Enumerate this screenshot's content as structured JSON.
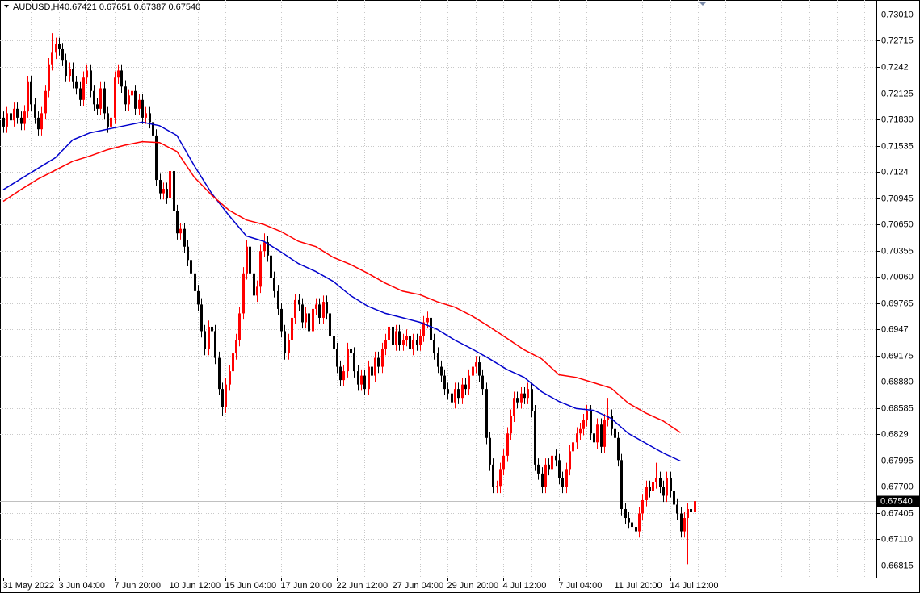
{
  "chart_data": {
    "type": "candlestick",
    "title": "AUDUSD,H4",
    "ohlc_text": "0.67421 0.67651 0.67387 0.67540",
    "ylim": [
      0.66679,
      0.73173
    ],
    "yticks": [
      {
        "value": 0.7301,
        "label": "0.73010"
      },
      0.72715,
      0.7242,
      0.72125,
      {
        "value": 0.7183,
        "label": "0.71830"
      },
      0.71535,
      0.7124,
      0.70945,
      {
        "value": 0.7065,
        "label": "0.70650"
      },
      0.70355,
      {
        "value": 0.7006,
        "label": "0.70060"
      },
      0.69765,
      0.6947,
      0.69175,
      {
        "value": 0.6888,
        "label": "0.68880"
      },
      0.68585,
      0.6829,
      0.67995,
      {
        "value": 0.677,
        "label": "0.67700"
      },
      0.67405,
      {
        "value": 0.6711,
        "label": "0.67110"
      },
      0.66815
    ],
    "x_labels": [
      "31 May 2022",
      "3 Jun 04:00",
      "7 Jun 20:00",
      "10 Jun 12:00",
      "15 Jun 04:00",
      "17 Jun 20:00",
      "22 Jun 12:00",
      "27 Jun 04:00",
      "29 Jun 20:00",
      "4 Jul 12:00",
      "7 Jul 04:00",
      "11 Jul 20:00",
      "14 Jul 12:00"
    ],
    "last_price": {
      "value": 0.6754,
      "label": "0.67540"
    },
    "grid": true,
    "bull_color": "#ff0000",
    "bear_color": "#000000",
    "candles": [
      [
        0.7185,
        0.7192,
        0.7168,
        0.7175
      ],
      [
        0.7175,
        0.7197,
        0.7168,
        0.719
      ],
      [
        0.719,
        0.7197,
        0.7175,
        0.7182
      ],
      [
        0.7182,
        0.7202,
        0.7175,
        0.7195
      ],
      [
        0.7195,
        0.7202,
        0.7178,
        0.7185
      ],
      [
        0.7185,
        0.7192,
        0.7171,
        0.7178
      ],
      [
        0.7178,
        0.7199,
        0.7171,
        0.7192
      ],
      [
        0.7192,
        0.7232,
        0.7185,
        0.7225
      ],
      [
        0.7225,
        0.7232,
        0.7193,
        0.72
      ],
      [
        0.72,
        0.7207,
        0.7178,
        0.7185
      ],
      [
        0.7185,
        0.7192,
        0.7165,
        0.7172
      ],
      [
        0.7172,
        0.7197,
        0.7165,
        0.719
      ],
      [
        0.719,
        0.7222,
        0.7183,
        0.7215
      ],
      [
        0.7215,
        0.7252,
        0.7208,
        0.7245
      ],
      [
        0.7245,
        0.728,
        0.7238,
        0.7258
      ],
      [
        0.7258,
        0.7275,
        0.7251,
        0.7268
      ],
      [
        0.7268,
        0.7275,
        0.7255,
        0.7262
      ],
      [
        0.7262,
        0.7269,
        0.7243,
        0.725
      ],
      [
        0.725,
        0.7257,
        0.7225,
        0.7232
      ],
      [
        0.7232,
        0.7247,
        0.7225,
        0.724
      ],
      [
        0.724,
        0.7247,
        0.7218,
        0.7225
      ],
      [
        0.7225,
        0.7232,
        0.7211,
        0.7218
      ],
      [
        0.7218,
        0.7225,
        0.7198,
        0.7205
      ],
      [
        0.7205,
        0.7237,
        0.7198,
        0.723
      ],
      [
        0.723,
        0.7245,
        0.7223,
        0.7238
      ],
      [
        0.7238,
        0.7245,
        0.7208,
        0.7215
      ],
      [
        0.7215,
        0.7222,
        0.7193,
        0.72
      ],
      [
        0.72,
        0.7207,
        0.7188,
        0.7195
      ],
      [
        0.7195,
        0.7225,
        0.7188,
        0.7218
      ],
      [
        0.7218,
        0.7225,
        0.7183,
        0.719
      ],
      [
        0.719,
        0.7197,
        0.7168,
        0.7175
      ],
      [
        0.7175,
        0.7192,
        0.7168,
        0.7185
      ],
      [
        0.7185,
        0.7237,
        0.7178,
        0.723
      ],
      [
        0.723,
        0.7245,
        0.7223,
        0.7238
      ],
      [
        0.7238,
        0.7245,
        0.7213,
        0.722
      ],
      [
        0.722,
        0.7227,
        0.7193,
        0.72
      ],
      [
        0.72,
        0.7217,
        0.7193,
        0.721
      ],
      [
        0.721,
        0.7222,
        0.7203,
        0.7215
      ],
      [
        0.7215,
        0.7222,
        0.7188,
        0.7195
      ],
      [
        0.7195,
        0.7212,
        0.7188,
        0.7205
      ],
      [
        0.7205,
        0.7212,
        0.7178,
        0.7185
      ],
      [
        0.7185,
        0.7197,
        0.7178,
        0.719
      ],
      [
        0.719,
        0.7197,
        0.7173,
        0.718
      ],
      [
        0.718,
        0.7187,
        0.7158,
        0.7165
      ],
      [
        0.7165,
        0.7172,
        0.7108,
        0.7115
      ],
      [
        0.7115,
        0.7122,
        0.7093,
        0.71
      ],
      [
        0.71,
        0.7112,
        0.7093,
        0.7105
      ],
      [
        0.7105,
        0.7112,
        0.7088,
        0.7095
      ],
      [
        0.7095,
        0.7132,
        0.7088,
        0.7125
      ],
      [
        0.7125,
        0.7132,
        0.7073,
        0.708
      ],
      [
        0.708,
        0.7087,
        0.7048,
        0.7055
      ],
      [
        0.7055,
        0.7067,
        0.7048,
        0.706
      ],
      [
        0.706,
        0.7067,
        0.7033,
        0.704
      ],
      [
        0.704,
        0.7047,
        0.7018,
        0.7025
      ],
      [
        0.7025,
        0.7032,
        0.7003,
        0.701
      ],
      [
        0.701,
        0.7017,
        0.6983,
        0.699
      ],
      [
        0.699,
        0.6997,
        0.6968,
        0.6975
      ],
      [
        0.6975,
        0.6982,
        0.6938,
        0.6945
      ],
      [
        0.6945,
        0.6952,
        0.6918,
        0.6925
      ],
      [
        0.6925,
        0.6957,
        0.6918,
        0.695
      ],
      [
        0.695,
        0.6957,
        0.6938,
        0.6945
      ],
      [
        0.6945,
        0.6952,
        0.6908,
        0.6915
      ],
      [
        0.6915,
        0.6922,
        0.6873,
        0.688
      ],
      [
        0.688,
        0.6887,
        0.685,
        0.686
      ],
      [
        0.686,
        0.6892,
        0.6853,
        0.6885
      ],
      [
        0.6885,
        0.6907,
        0.6878,
        0.69
      ],
      [
        0.69,
        0.6927,
        0.6893,
        0.692
      ],
      [
        0.692,
        0.6942,
        0.6913,
        0.6935
      ],
      [
        0.6935,
        0.6972,
        0.6928,
        0.6965
      ],
      [
        0.6965,
        0.7017,
        0.6958,
        0.701
      ],
      [
        0.701,
        0.7047,
        0.7003,
        0.704
      ],
      [
        0.704,
        0.7047,
        0.7003,
        0.701
      ],
      [
        0.701,
        0.7017,
        0.6978,
        0.6985
      ],
      [
        0.6985,
        0.7002,
        0.6978,
        0.6995
      ],
      [
        0.6995,
        0.7042,
        0.6988,
        0.7035
      ],
      [
        0.7035,
        0.7055,
        0.7028,
        0.7045
      ],
      [
        0.7045,
        0.7052,
        0.7023,
        0.703
      ],
      [
        0.703,
        0.7037,
        0.6998,
        0.7005
      ],
      [
        0.7005,
        0.7012,
        0.6983,
        0.699
      ],
      [
        0.699,
        0.6997,
        0.6963,
        0.697
      ],
      [
        0.697,
        0.6977,
        0.6938,
        0.6945
      ],
      [
        0.6945,
        0.6952,
        0.6913,
        0.692
      ],
      [
        0.692,
        0.6942,
        0.6913,
        0.6935
      ],
      [
        0.6935,
        0.6967,
        0.6928,
        0.696
      ],
      [
        0.696,
        0.6987,
        0.6953,
        0.698
      ],
      [
        0.698,
        0.6987,
        0.6968,
        0.6975
      ],
      [
        0.6975,
        0.6982,
        0.6948,
        0.6955
      ],
      [
        0.6955,
        0.6972,
        0.6948,
        0.6965
      ],
      [
        0.6965,
        0.6972,
        0.6938,
        0.6945
      ],
      [
        0.6945,
        0.6977,
        0.6938,
        0.697
      ],
      [
        0.697,
        0.6982,
        0.6963,
        0.6975
      ],
      [
        0.6975,
        0.6982,
        0.6953,
        0.696
      ],
      [
        0.696,
        0.6985,
        0.6953,
        0.6978
      ],
      [
        0.6978,
        0.6985,
        0.6958,
        0.6965
      ],
      [
        0.6965,
        0.6972,
        0.6933,
        0.694
      ],
      [
        0.694,
        0.6947,
        0.6918,
        0.6925
      ],
      [
        0.6925,
        0.6932,
        0.6898,
        0.6905
      ],
      [
        0.6905,
        0.6912,
        0.6883,
        0.689
      ],
      [
        0.689,
        0.6907,
        0.6883,
        0.69
      ],
      [
        0.69,
        0.6932,
        0.6893,
        0.6925
      ],
      [
        0.6925,
        0.6932,
        0.6913,
        0.692
      ],
      [
        0.692,
        0.6927,
        0.6893,
        0.69
      ],
      [
        0.69,
        0.6907,
        0.6878,
        0.6885
      ],
      [
        0.6885,
        0.6902,
        0.6878,
        0.6895
      ],
      [
        0.6895,
        0.6902,
        0.6873,
        0.688
      ],
      [
        0.688,
        0.6912,
        0.6873,
        0.6905
      ],
      [
        0.6905,
        0.6912,
        0.6888,
        0.6895
      ],
      [
        0.6895,
        0.6922,
        0.6888,
        0.6915
      ],
      [
        0.6915,
        0.6922,
        0.6898,
        0.6905
      ],
      [
        0.6905,
        0.6932,
        0.6898,
        0.6925
      ],
      [
        0.6925,
        0.6942,
        0.6918,
        0.6935
      ],
      [
        0.6935,
        0.6957,
        0.6928,
        0.695
      ],
      [
        0.695,
        0.6957,
        0.6923,
        0.693
      ],
      [
        0.693,
        0.6952,
        0.6923,
        0.6945
      ],
      [
        0.6945,
        0.6952,
        0.6923,
        0.693
      ],
      [
        0.693,
        0.6942,
        0.6923,
        0.6935
      ],
      [
        0.6935,
        0.6947,
        0.6928,
        0.694
      ],
      [
        0.694,
        0.6947,
        0.6918,
        0.6925
      ],
      [
        0.6925,
        0.6942,
        0.6918,
        0.6935
      ],
      [
        0.6935,
        0.6942,
        0.6923,
        0.693
      ],
      [
        0.693,
        0.6947,
        0.6923,
        0.694
      ],
      [
        0.694,
        0.6962,
        0.6933,
        0.6955
      ],
      [
        0.6955,
        0.6967,
        0.6948,
        0.696
      ],
      [
        0.696,
        0.6967,
        0.6928,
        0.6935
      ],
      [
        0.6935,
        0.6942,
        0.6913,
        0.692
      ],
      [
        0.692,
        0.6927,
        0.6898,
        0.6905
      ],
      [
        0.6905,
        0.6912,
        0.6888,
        0.6895
      ],
      [
        0.6895,
        0.6902,
        0.6873,
        0.688
      ],
      [
        0.688,
        0.6887,
        0.6868,
        0.6875
      ],
      [
        0.6875,
        0.6882,
        0.6858,
        0.6865
      ],
      [
        0.6865,
        0.6887,
        0.6858,
        0.688
      ],
      [
        0.688,
        0.6887,
        0.6863,
        0.687
      ],
      [
        0.687,
        0.6892,
        0.6863,
        0.6885
      ],
      [
        0.6885,
        0.6892,
        0.6873,
        0.688
      ],
      [
        0.688,
        0.6902,
        0.6873,
        0.6895
      ],
      [
        0.6895,
        0.6912,
        0.6888,
        0.6905
      ],
      [
        0.6905,
        0.6917,
        0.6898,
        0.691
      ],
      [
        0.691,
        0.6917,
        0.6888,
        0.6895
      ],
      [
        0.6895,
        0.6902,
        0.6873,
        0.688
      ],
      [
        0.688,
        0.6887,
        0.6818,
        0.6825
      ],
      [
        0.6825,
        0.6832,
        0.6788,
        0.6795
      ],
      [
        0.6795,
        0.6802,
        0.6763,
        0.677
      ],
      [
        0.677,
        0.6777,
        0.6763,
        0.6771
      ],
      [
        0.6771,
        0.6797,
        0.6763,
        0.679
      ],
      [
        0.679,
        0.6812,
        0.6783,
        0.6805
      ],
      [
        0.6805,
        0.6837,
        0.6798,
        0.683
      ],
      [
        0.683,
        0.6857,
        0.6823,
        0.685
      ],
      [
        0.685,
        0.6877,
        0.6843,
        0.687
      ],
      [
        0.687,
        0.6877,
        0.6858,
        0.6865
      ],
      [
        0.6865,
        0.6882,
        0.6858,
        0.6875
      ],
      [
        0.6875,
        0.6882,
        0.6863,
        0.687
      ],
      [
        0.687,
        0.6887,
        0.6863,
        0.688
      ],
      [
        0.688,
        0.6887,
        0.6848,
        0.6855
      ],
      [
        0.6855,
        0.6862,
        0.6788,
        0.6795
      ],
      [
        0.6795,
        0.6802,
        0.6778,
        0.6785
      ],
      [
        0.6785,
        0.6792,
        0.6763,
        0.677
      ],
      [
        0.677,
        0.6802,
        0.6763,
        0.6795
      ],
      [
        0.6795,
        0.6802,
        0.6783,
        0.679
      ],
      [
        0.679,
        0.6812,
        0.6783,
        0.6805
      ],
      [
        0.6805,
        0.6812,
        0.6793,
        0.68
      ],
      [
        0.68,
        0.6807,
        0.6773,
        0.678
      ],
      [
        0.678,
        0.6787,
        0.6763,
        0.677
      ],
      [
        0.677,
        0.6797,
        0.6763,
        0.679
      ],
      [
        0.679,
        0.6817,
        0.6783,
        0.681
      ],
      [
        0.681,
        0.6827,
        0.6803,
        0.682
      ],
      [
        0.682,
        0.6837,
        0.6813,
        0.683
      ],
      [
        0.683,
        0.6842,
        0.6823,
        0.6835
      ],
      [
        0.6835,
        0.6852,
        0.6828,
        0.6845
      ],
      [
        0.6845,
        0.6862,
        0.6838,
        0.6855
      ],
      [
        0.6855,
        0.6862,
        0.6823,
        0.683
      ],
      [
        0.683,
        0.6837,
        0.6813,
        0.682
      ],
      [
        0.682,
        0.6847,
        0.6813,
        0.684
      ],
      [
        0.684,
        0.6847,
        0.6808,
        0.6815
      ],
      [
        0.6815,
        0.6852,
        0.6808,
        0.6845
      ],
      [
        0.6845,
        0.687,
        0.6838,
        0.685
      ],
      [
        0.685,
        0.6857,
        0.6828,
        0.6835
      ],
      [
        0.6835,
        0.6842,
        0.6818,
        0.6825
      ],
      [
        0.6825,
        0.6832,
        0.6793,
        0.68
      ],
      [
        0.68,
        0.6807,
        0.6738,
        0.6745
      ],
      [
        0.6745,
        0.6752,
        0.6728,
        0.6735
      ],
      [
        0.6735,
        0.6742,
        0.6723,
        0.673
      ],
      [
        0.673,
        0.6737,
        0.6718,
        0.6725
      ],
      [
        0.6725,
        0.6732,
        0.6713,
        0.672
      ],
      [
        0.672,
        0.6747,
        0.6713,
        0.674
      ],
      [
        0.674,
        0.6762,
        0.6733,
        0.6755
      ],
      [
        0.6755,
        0.6777,
        0.6748,
        0.677
      ],
      [
        0.677,
        0.6777,
        0.6758,
        0.6765
      ],
      [
        0.6765,
        0.6782,
        0.6758,
        0.6775
      ],
      [
        0.6775,
        0.6797,
        0.6768,
        0.678
      ],
      [
        0.678,
        0.6787,
        0.6763,
        0.677
      ],
      [
        0.677,
        0.6777,
        0.6753,
        0.676
      ],
      [
        0.676,
        0.6787,
        0.6753,
        0.678
      ],
      [
        0.678,
        0.6787,
        0.6758,
        0.6765
      ],
      [
        0.6765,
        0.6772,
        0.6743,
        0.675
      ],
      [
        0.675,
        0.6757,
        0.6733,
        0.674
      ],
      [
        0.674,
        0.6747,
        0.6713,
        0.672
      ],
      [
        0.672,
        0.6742,
        0.6713,
        0.6735
      ],
      [
        0.6735,
        0.6752,
        0.6683,
        0.6745
      ],
      [
        0.6745,
        0.6752,
        0.6735,
        0.67421
      ],
      [
        0.67421,
        0.67651,
        0.67387,
        0.6754
      ]
    ],
    "ma": [
      {
        "color": "#0000cc",
        "values": [
          0.7104,
          0.7116,
          0.7128,
          0.714,
          0.716,
          0.7168,
          0.7172,
          0.7176,
          0.718,
          0.7176,
          0.7165,
          0.7131,
          0.71,
          0.7075,
          0.7052,
          0.7046,
          0.7034,
          0.7021,
          0.7012,
          0.7001,
          0.6985,
          0.6973,
          0.6965,
          0.696,
          0.6955,
          0.6947,
          0.6935,
          0.6925,
          0.6914,
          0.6902,
          0.6893,
          0.6877,
          0.6866,
          0.6858,
          0.6856,
          0.6847,
          0.683,
          0.6819,
          0.6808,
          0.6799
        ]
      },
      {
        "color": "#ff0000",
        "values": [
          0.7091,
          0.7104,
          0.7116,
          0.7126,
          0.7136,
          0.7142,
          0.7149,
          0.7154,
          0.7158,
          0.7157,
          0.7147,
          0.7118,
          0.7098,
          0.7081,
          0.707,
          0.7065,
          0.7057,
          0.7046,
          0.704,
          0.7028,
          0.702,
          0.701,
          0.6999,
          0.699,
          0.6986,
          0.6978,
          0.6972,
          0.6962,
          0.695,
          0.6937,
          0.6924,
          0.6914,
          0.6896,
          0.6893,
          0.6887,
          0.6881,
          0.6864,
          0.6853,
          0.6844,
          0.6831
        ]
      }
    ]
  }
}
